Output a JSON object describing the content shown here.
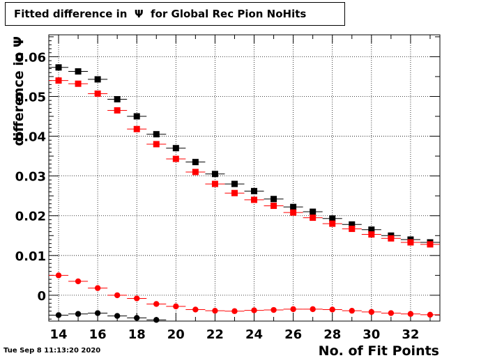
{
  "title": "Fitted difference in  Ψ  for Global Rec Pion NoHits",
  "timestamp": "Tue Sep  8 11:13:20 2020",
  "chart_data": {
    "type": "scatter",
    "title": "Fitted difference in  Ψ  for Global Rec Pion NoHits",
    "xlabel": "No. of Fit Points",
    "ylabel": "difference in Ψ",
    "xlim": [
      13.5,
      33.5
    ],
    "ylim": [
      -0.0065,
      0.0655
    ],
    "grid": true,
    "x_ticks": [
      "14",
      "16",
      "18",
      "20",
      "22",
      "24",
      "26",
      "28",
      "30",
      "32"
    ],
    "y_ticks": [
      "0",
      "0.01",
      "0.02",
      "0.03",
      "0.04",
      "0.05",
      "0.06"
    ],
    "x": [
      14,
      15,
      16,
      17,
      18,
      19,
      20,
      21,
      22,
      23,
      24,
      25,
      26,
      27,
      28,
      29,
      30,
      31,
      32,
      33
    ],
    "series": [
      {
        "marker": "square",
        "color": "#000000",
        "values": [
          0.0573,
          0.0563,
          0.0543,
          0.0493,
          0.045,
          0.0405,
          0.037,
          0.0335,
          0.0305,
          0.028,
          0.0262,
          0.0242,
          0.0222,
          0.021,
          0.0193,
          0.0178,
          0.0165,
          0.015,
          0.014,
          0.0133
        ]
      },
      {
        "marker": "square",
        "color": "#ff0000",
        "values": [
          0.054,
          0.0532,
          0.0507,
          0.0465,
          0.0418,
          0.038,
          0.0343,
          0.031,
          0.028,
          0.0257,
          0.024,
          0.0225,
          0.0208,
          0.0195,
          0.018,
          0.0167,
          0.0153,
          0.0143,
          0.0133,
          0.0128
        ]
      },
      {
        "marker": "circle",
        "color": "#ff0000",
        "values": [
          0.005,
          0.0035,
          0.0018,
          0.0,
          -0.0008,
          -0.0022,
          -0.0028,
          -0.0036,
          -0.0039,
          -0.004,
          -0.0038,
          -0.0037,
          -0.0035,
          -0.0035,
          -0.0036,
          -0.0039,
          -0.0042,
          -0.0045,
          -0.0047,
          -0.0049
        ]
      },
      {
        "marker": "circle",
        "color": "#000000",
        "values": [
          -0.005,
          -0.0047,
          -0.0045,
          -0.0052,
          -0.0057,
          -0.0062
        ]
      }
    ]
  }
}
